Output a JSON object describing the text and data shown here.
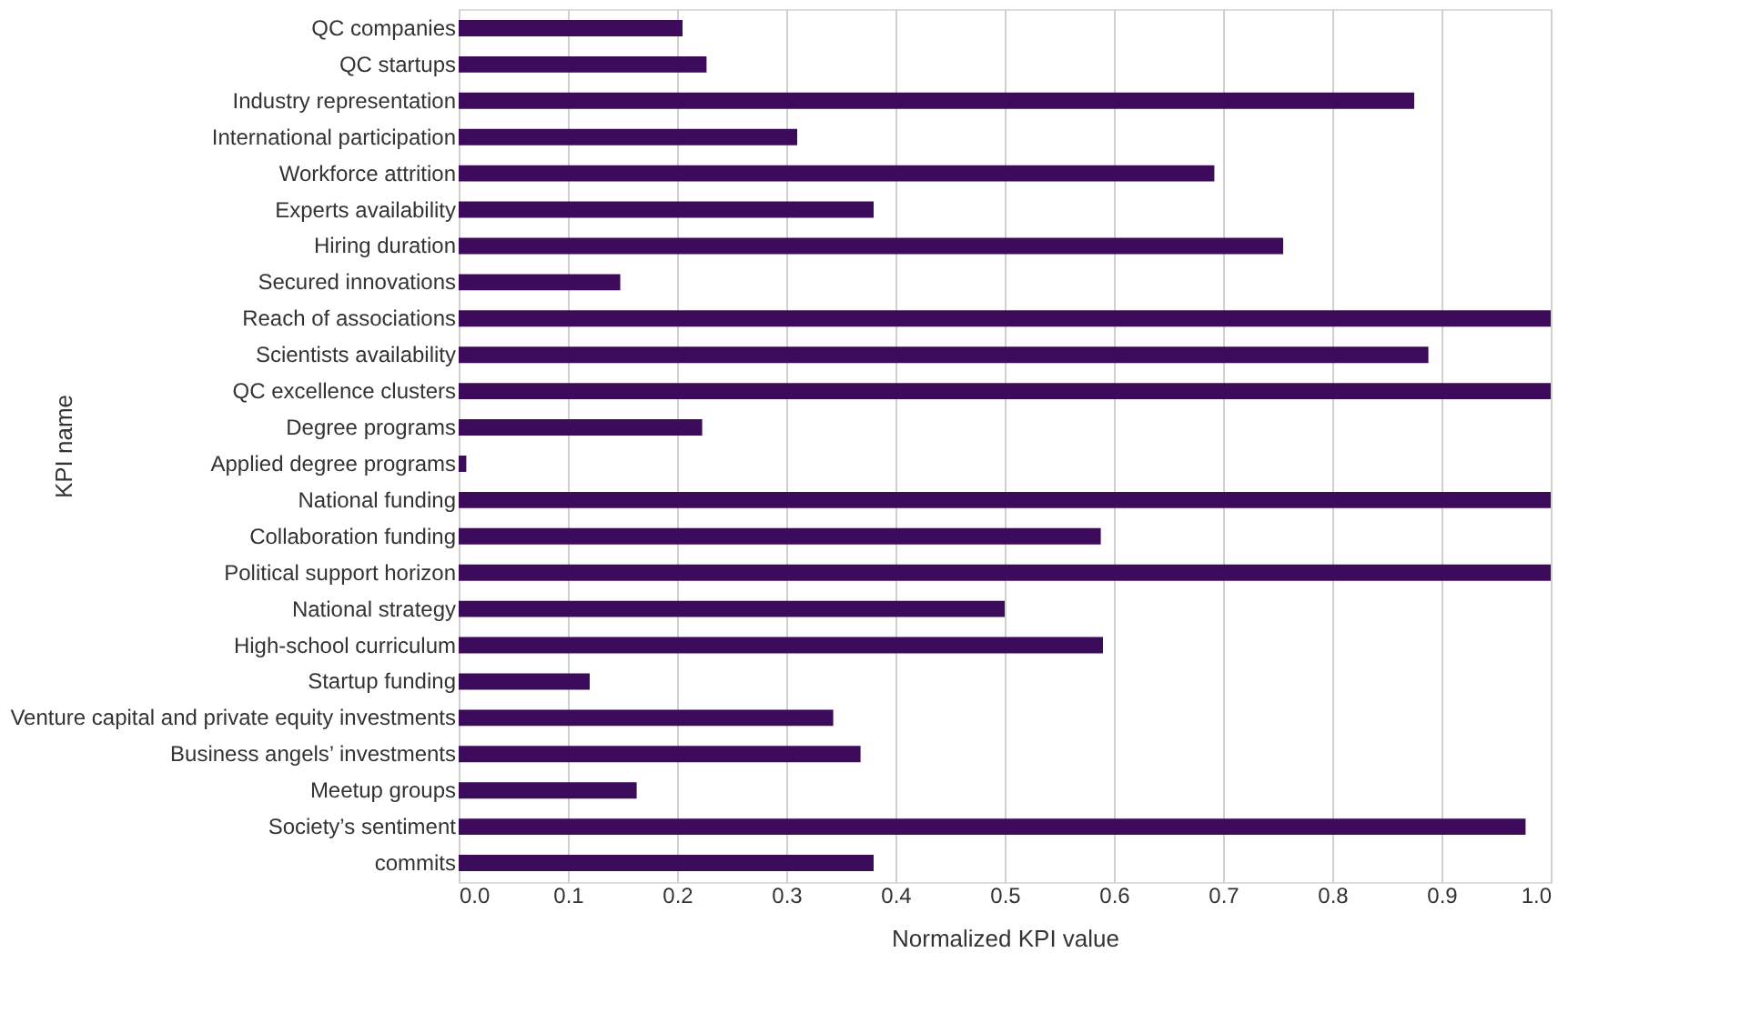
{
  "chart_data": {
    "type": "bar",
    "orientation": "horizontal",
    "xlabel": "Normalized KPI value",
    "ylabel": "KPI name",
    "grid": "x",
    "color": "#3d0b5b",
    "categories": [
      "QC companies",
      "QC startups",
      "Industry representation",
      "International participation",
      "Workforce attrition",
      "Experts availability",
      "Hiring duration",
      "Secured innovations",
      "Reach of associations",
      "Scientists availability",
      "QC excellence clusters",
      "Degree programs",
      "Applied degree programs",
      "National funding",
      "Collaboration funding",
      "Political support horizon",
      "National strategy",
      "High-school curriculum",
      "Startup funding",
      "Venture capital and private equity investments",
      "Business angels’ investments",
      "Meetup groups",
      "Society’s sentiment",
      "commits"
    ],
    "values": [
      0.205,
      0.227,
      0.875,
      0.31,
      0.692,
      0.38,
      0.755,
      0.148,
      1.0,
      0.888,
      1.0,
      0.223,
      0.007,
      1.0,
      0.588,
      1.0,
      0.5,
      0.59,
      0.12,
      0.343,
      0.368,
      0.163,
      0.977,
      0.38
    ],
    "xlim": [
      0,
      1
    ],
    "xticks": [
      {
        "value": 0,
        "label": "0.0"
      },
      {
        "value": 0.1,
        "label": "0.1"
      },
      {
        "value": 0.2,
        "label": "0.2"
      },
      {
        "value": 0.3,
        "label": "0.3"
      },
      {
        "value": 0.4,
        "label": "0.4"
      },
      {
        "value": 0.5,
        "label": "0.5"
      },
      {
        "value": 0.6,
        "label": "0.6"
      },
      {
        "value": 0.7,
        "label": "0.7"
      },
      {
        "value": 0.8,
        "label": "0.8"
      },
      {
        "value": 0.9,
        "label": "0.9"
      },
      {
        "value": 1.0,
        "label": "1.0"
      }
    ]
  }
}
